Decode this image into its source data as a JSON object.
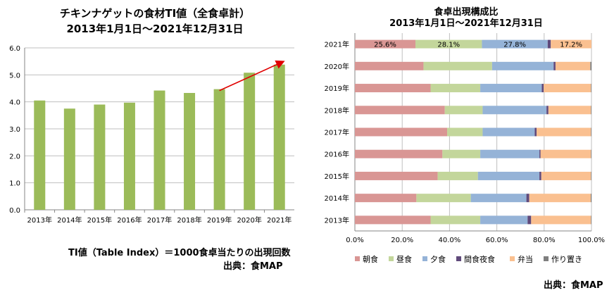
{
  "chart_data": [
    {
      "type": "bar",
      "title": "チキンナゲットの食材TI値（全食卓計）",
      "subtitle": "2013年1月1日～2021年12月31日",
      "categories": [
        "2013年",
        "2014年",
        "2015年",
        "2016年",
        "2017年",
        "2018年",
        "2019年",
        "2020年",
        "2021年"
      ],
      "values": [
        4.05,
        3.75,
        3.9,
        3.97,
        4.42,
        4.33,
        4.47,
        5.08,
        5.38
      ],
      "ylim": [
        0,
        6
      ],
      "yticks": [
        "0.0",
        "1.0",
        "2.0",
        "3.0",
        "4.0",
        "5.0",
        "6.0"
      ],
      "grid": true,
      "bar_color": "#9BBB59",
      "annotation_arrow": {
        "from_category": "2019年",
        "to_category": "2021年",
        "color": "#E00000"
      },
      "footnote": "TI値（Table Index）＝1000食卓当たりの出現回数",
      "source": "出典：食MAP"
    },
    {
      "type": "bar",
      "orientation": "horizontal-stacked-100",
      "title": "食卓出現構成比",
      "subtitle": "2013年1月1日～2021年12月31日",
      "categories": [
        "2021年",
        "2020年",
        "2019年",
        "2018年",
        "2017年",
        "2016年",
        "2015年",
        "2014年",
        "2013年"
      ],
      "series": [
        {
          "name": "朝食",
          "color": "#D99694",
          "values": [
            25.6,
            29.0,
            32.0,
            38.0,
            39.0,
            37.0,
            35.0,
            26.0,
            32.0
          ]
        },
        {
          "name": "昼食",
          "color": "#C3D69B",
          "values": [
            28.1,
            29.0,
            21.0,
            16.0,
            15.0,
            16.0,
            17.0,
            23.0,
            21.0
          ]
        },
        {
          "name": "夕食",
          "color": "#95B3D7",
          "values": [
            27.8,
            26.0,
            26.0,
            27.0,
            22.0,
            25.0,
            26.0,
            23.5,
            20.0
          ]
        },
        {
          "name": "間食夜食",
          "color": "#604A7B",
          "values": [
            1.3,
            0.8,
            0.8,
            0.8,
            0.8,
            0.5,
            0.8,
            1.2,
            1.5
          ]
        },
        {
          "name": "弁当",
          "color": "#FAC090",
          "values": [
            17.2,
            14.7,
            20.0,
            18.0,
            23.0,
            21.3,
            21.0,
            26.0,
            25.3
          ]
        },
        {
          "name": "作り置き",
          "color": "#7F7F7F",
          "values": [
            0,
            0.5,
            0.2,
            0.2,
            0.2,
            0.2,
            0.2,
            0.3,
            0.2
          ]
        }
      ],
      "data_labels": {
        "category": "2021年",
        "labels": [
          "25.6%",
          "28.1%",
          "27.8%",
          "",
          "17.2%",
          ""
        ]
      },
      "xlim": [
        0,
        100
      ],
      "xticks": [
        "0.0%",
        "20.0%",
        "40.0%",
        "60.0%",
        "80.0%",
        "100.0%"
      ],
      "grid": true,
      "legend": "bottom",
      "source": "出典：食MAP"
    }
  ]
}
